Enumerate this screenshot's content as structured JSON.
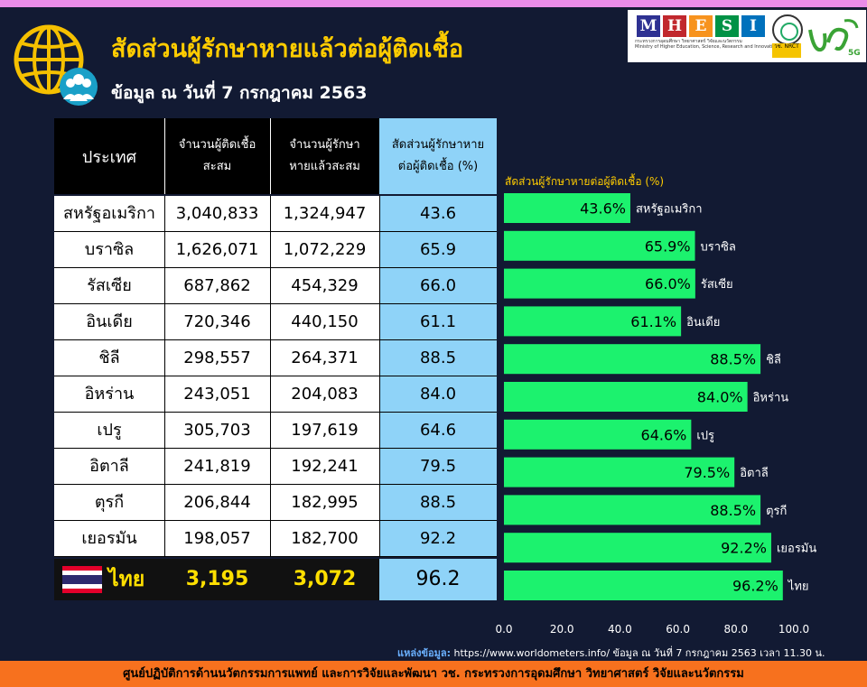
{
  "header": {
    "title": "สัดส่วนผู้รักษาหายแล้วต่อผู้ติดเชื้อ",
    "subtitle": "ข้อมูล ณ วันที่ 7 กรกฎาคม 2563"
  },
  "logos": {
    "mhesi_letters": [
      "M",
      "H",
      "E",
      "S",
      "I"
    ],
    "mhesi_colors": [
      "#2e3192",
      "#c1272d",
      "#f7931e",
      "#009245",
      "#0071bc"
    ],
    "mhesi_caption_th": "กระทรวงการอุดมศึกษา วิทยาศาสตร์ วิจัยและนวัตกรรม",
    "mhesi_caption_en": "Ministry of Higher Education, Science, Research and Innovation",
    "nrct_label": "วช. NRCT",
    "brand_mark": "วช 5G"
  },
  "table": {
    "headers": {
      "country": "ประเทศ",
      "infected": "จำนวนผู้ติดเชื้อสะสม",
      "recovered": "จำนวนผู้รักษาหายแล้วสะสม",
      "ratio": "สัดส่วนผู้รักษาหายต่อผู้ติดเชื้อ (%)"
    },
    "rows": [
      {
        "country": "สหรัฐอเมริกา",
        "infected": "3,040,833",
        "recovered": "1,324,947",
        "ratio": "43.6"
      },
      {
        "country": "บราซิล",
        "infected": "1,626,071",
        "recovered": "1,072,229",
        "ratio": "65.9"
      },
      {
        "country": "รัสเซีย",
        "infected": "687,862",
        "recovered": "454,329",
        "ratio": "66.0"
      },
      {
        "country": "อินเดีย",
        "infected": "720,346",
        "recovered": "440,150",
        "ratio": "61.1"
      },
      {
        "country": "ชิลี",
        "infected": "298,557",
        "recovered": "264,371",
        "ratio": "88.5"
      },
      {
        "country": "อิหร่าน",
        "infected": "243,051",
        "recovered": "204,083",
        "ratio": "84.0"
      },
      {
        "country": "เปรู",
        "infected": "305,703",
        "recovered": "197,619",
        "ratio": "64.6"
      },
      {
        "country": "อิตาลี",
        "infected": "241,819",
        "recovered": "192,241",
        "ratio": "79.5"
      },
      {
        "country": "ตุรกี",
        "infected": "206,844",
        "recovered": "182,995",
        "ratio": "88.5"
      },
      {
        "country": "เยอรมัน",
        "infected": "198,057",
        "recovered": "182,700",
        "ratio": "92.2"
      }
    ],
    "thai": {
      "country": "ไทย",
      "infected": "3,195",
      "recovered": "3,072",
      "ratio": "96.2"
    }
  },
  "chart_data": {
    "type": "bar",
    "orientation": "horizontal",
    "title": "สัดส่วนผู้รักษาหายต่อผู้ติดเชื้อ (%)",
    "categories": [
      "สหรัฐอเมริกา",
      "บราซิล",
      "รัสเซีย",
      "อินเดีย",
      "ชิลี",
      "อิหร่าน",
      "เปรู",
      "อิตาลี",
      "ตุรกี",
      "เยอรมัน",
      "ไทย"
    ],
    "values": [
      43.6,
      65.9,
      66.0,
      61.1,
      88.5,
      84.0,
      64.6,
      79.5,
      88.5,
      92.2,
      96.2
    ],
    "value_labels": [
      "43.6%",
      "65.9%",
      "66.0%",
      "61.1%",
      "88.5%",
      "84.0%",
      "64.6%",
      "79.5%",
      "88.5%",
      "92.2%",
      "96.2%"
    ],
    "xlim": [
      0,
      100
    ],
    "ticks": [
      "0.0",
      "20.0",
      "40.0",
      "60.0",
      "80.0",
      "100.0"
    ],
    "bar_color": "#1cf26e",
    "grid": false
  },
  "source": {
    "label": "แหล่งข้อมูล:",
    "text": "https://www.worldometers.info/ ข้อมูล ณ วันที่ 7 กรกฎาคม 2563 เวลา 11.30 น."
  },
  "footer": {
    "text": "ศูนย์ปฏิบัติการด้านนวัตกรรมการแพทย์ และการวิจัยและพัฒนา วช. กระทรวงการอุดมศึกษา วิทยาศาสตร์ วิจัยและนวัตกรรม"
  },
  "colors": {
    "background": "#121a33",
    "title": "#ffcc00",
    "bar": "#1cf26e",
    "ratio_column": "#8fd3f8",
    "thai_text": "#ffdf00",
    "footer": "#f7711e",
    "top_band": "#ea8ce8"
  }
}
